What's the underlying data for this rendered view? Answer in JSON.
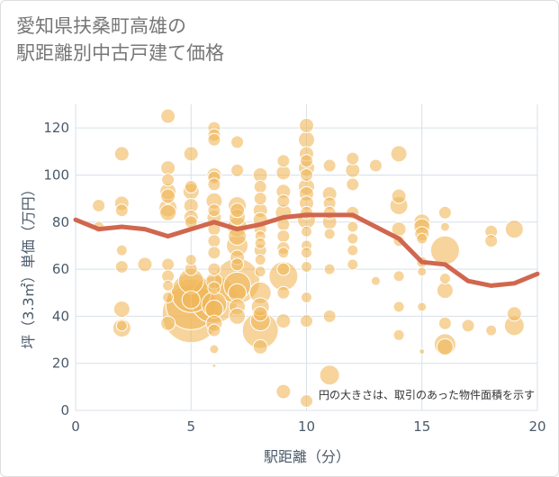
{
  "title_lines": [
    "愛知県扶桑町高雄の",
    "駅距離別中古戸建て価格"
  ],
  "chart_data": {
    "type": "scatter",
    "title": "愛知県扶桑町高雄の駅距離別中古戸建て価格",
    "xlabel": "駅距離（分）",
    "ylabel": "坪（3.3㎡）単価（万円）",
    "xlim": [
      0,
      20
    ],
    "ylim": [
      0,
      130
    ],
    "xticks": [
      0,
      5,
      10,
      15,
      20
    ],
    "yticks": [
      0,
      20,
      40,
      60,
      80,
      100,
      120
    ],
    "grid": true,
    "note": "円の大きさは、取引のあった物件面積を示す",
    "colors": {
      "bubble": "#f0b85a",
      "line": "#d0674e",
      "grid": "#d8e0e8"
    },
    "series": [
      {
        "kind": "bubbles",
        "points": [
          [
            1,
            87,
            7
          ],
          [
            1,
            78,
            6
          ],
          [
            2,
            109,
            8
          ],
          [
            2,
            88,
            8
          ],
          [
            2,
            85,
            7
          ],
          [
            2,
            68,
            6
          ],
          [
            2,
            61,
            7
          ],
          [
            2,
            43,
            9
          ],
          [
            2,
            36,
            6
          ],
          [
            2,
            35,
            10
          ],
          [
            3,
            62,
            8
          ],
          [
            4,
            125,
            8
          ],
          [
            4,
            103,
            8
          ],
          [
            4,
            98,
            7
          ],
          [
            4,
            93,
            9
          ],
          [
            4,
            91,
            8
          ],
          [
            4,
            86,
            10
          ],
          [
            4,
            84,
            9
          ],
          [
            4,
            62,
            7
          ],
          [
            4,
            57,
            7
          ],
          [
            4,
            53,
            6
          ],
          [
            4,
            48,
            6
          ],
          [
            4,
            37,
            8
          ],
          [
            5,
            109,
            8
          ],
          [
            5,
            95,
            7
          ],
          [
            5,
            93,
            9
          ],
          [
            5,
            87,
            8
          ],
          [
            5,
            82,
            8
          ],
          [
            5,
            80,
            7
          ],
          [
            5,
            64,
            6
          ],
          [
            5,
            60,
            7
          ],
          [
            5,
            55,
            14
          ],
          [
            5,
            50,
            22
          ],
          [
            5,
            47,
            10
          ],
          [
            5,
            45,
            28
          ],
          [
            5,
            41,
            32
          ],
          [
            6,
            120,
            7
          ],
          [
            6,
            117,
            7
          ],
          [
            6,
            115,
            7
          ],
          [
            6,
            100,
            8
          ],
          [
            6,
            99,
            7
          ],
          [
            6,
            96,
            7
          ],
          [
            6,
            89,
            9
          ],
          [
            6,
            85,
            7
          ],
          [
            6,
            82,
            8
          ],
          [
            6,
            77,
            7
          ],
          [
            6,
            72,
            7
          ],
          [
            6,
            67,
            7
          ],
          [
            6,
            60,
            7
          ],
          [
            6,
            55,
            9
          ],
          [
            6,
            52,
            7
          ],
          [
            6,
            47,
            26
          ],
          [
            6,
            45,
            14
          ],
          [
            6,
            43,
            10
          ],
          [
            6,
            37,
            9
          ],
          [
            6,
            34,
            7
          ],
          [
            6,
            26,
            5
          ],
          [
            6,
            19,
            2
          ],
          [
            7,
            114,
            7
          ],
          [
            7,
            102,
            7
          ],
          [
            7,
            87,
            10
          ],
          [
            7,
            85,
            8
          ],
          [
            7,
            82,
            9
          ],
          [
            7,
            78,
            11
          ],
          [
            7,
            74,
            10
          ],
          [
            7,
            70,
            12
          ],
          [
            7,
            65,
            8
          ],
          [
            7,
            62,
            7
          ],
          [
            7,
            55,
            25
          ],
          [
            7,
            53,
            15
          ],
          [
            7,
            50,
            10
          ],
          [
            7,
            44,
            9
          ],
          [
            7,
            40,
            9
          ],
          [
            8,
            100,
            8
          ],
          [
            8,
            95,
            7
          ],
          [
            8,
            90,
            7
          ],
          [
            8,
            85,
            8
          ],
          [
            8,
            81,
            8
          ],
          [
            8,
            77,
            7
          ],
          [
            8,
            74,
            6
          ],
          [
            8,
            71,
            6
          ],
          [
            8,
            68,
            7
          ],
          [
            8,
            64,
            6
          ],
          [
            8,
            59,
            6
          ],
          [
            8,
            50,
            12
          ],
          [
            8,
            44,
            10
          ],
          [
            8,
            41,
            8
          ],
          [
            8,
            38,
            11
          ],
          [
            8,
            34,
            20
          ],
          [
            8,
            27,
            8
          ],
          [
            9,
            106,
            7
          ],
          [
            9,
            101,
            8
          ],
          [
            9,
            93,
            8
          ],
          [
            9,
            89,
            7
          ],
          [
            9,
            84,
            9
          ],
          [
            9,
            79,
            7
          ],
          [
            9,
            74,
            7
          ],
          [
            9,
            69,
            7
          ],
          [
            9,
            67,
            6
          ],
          [
            9,
            60,
            7
          ],
          [
            9,
            57,
            16
          ],
          [
            9,
            50,
            7
          ],
          [
            9,
            38,
            8
          ],
          [
            9,
            8,
            8
          ],
          [
            10,
            121,
            8
          ],
          [
            10,
            115,
            9
          ],
          [
            10,
            109,
            8
          ],
          [
            10,
            106,
            7
          ],
          [
            10,
            103,
            9
          ],
          [
            10,
            100,
            7
          ],
          [
            10,
            95,
            9
          ],
          [
            10,
            92,
            8
          ],
          [
            10,
            88,
            8
          ],
          [
            10,
            84,
            7
          ],
          [
            10,
            81,
            10
          ],
          [
            10,
            76,
            6
          ],
          [
            10,
            70,
            6
          ],
          [
            10,
            67,
            6
          ],
          [
            10,
            61,
            6
          ],
          [
            10,
            48,
            6
          ],
          [
            10,
            38,
            7
          ],
          [
            10,
            4,
            7
          ],
          [
            11,
            104,
            7
          ],
          [
            11,
            92,
            8
          ],
          [
            11,
            88,
            7
          ],
          [
            11,
            84,
            7
          ],
          [
            11,
            80,
            8
          ],
          [
            11,
            75,
            6
          ],
          [
            11,
            60,
            6
          ],
          [
            11,
            40,
            7
          ],
          [
            11,
            15,
            11
          ],
          [
            12,
            107,
            7
          ],
          [
            12,
            102,
            8
          ],
          [
            12,
            96,
            7
          ],
          [
            12,
            84,
            7
          ],
          [
            12,
            78,
            6
          ],
          [
            12,
            73,
            6
          ],
          [
            12,
            68,
            6
          ],
          [
            12,
            62,
            6
          ],
          [
            13,
            104,
            7
          ],
          [
            13,
            55,
            5
          ],
          [
            14,
            109,
            9
          ],
          [
            14,
            91,
            8
          ],
          [
            14,
            87,
            10
          ],
          [
            14,
            77,
            8
          ],
          [
            14,
            72,
            6
          ],
          [
            14,
            57,
            6
          ],
          [
            14,
            44,
            6
          ],
          [
            14,
            32,
            6
          ],
          [
            15,
            80,
            9
          ],
          [
            15,
            78,
            9
          ],
          [
            15,
            75,
            8
          ],
          [
            15,
            73,
            6
          ],
          [
            15,
            63,
            6
          ],
          [
            15,
            59,
            5
          ],
          [
            15,
            44,
            5
          ],
          [
            15,
            25,
            3
          ],
          [
            16,
            84,
            7
          ],
          [
            16,
            78,
            5
          ],
          [
            16,
            68,
            16
          ],
          [
            16,
            56,
            6
          ],
          [
            16,
            51,
            9
          ],
          [
            16,
            37,
            7
          ],
          [
            16,
            28,
            12
          ],
          [
            16,
            27,
            9
          ],
          [
            17,
            36,
            7
          ],
          [
            18,
            76,
            7
          ],
          [
            18,
            72,
            7
          ],
          [
            18,
            34,
            6
          ],
          [
            19,
            77,
            10
          ],
          [
            19,
            41,
            8
          ],
          [
            19,
            36,
            11
          ]
        ]
      },
      {
        "kind": "line",
        "name": "",
        "x": [
          0,
          1,
          2,
          3,
          4,
          5,
          6,
          7,
          8,
          9,
          10,
          11,
          12,
          13,
          14,
          15,
          16,
          17,
          18,
          19,
          20
        ],
        "y": [
          81,
          77,
          78,
          77,
          74,
          77,
          80,
          77,
          79,
          82,
          83,
          83,
          83,
          78,
          73,
          63,
          62,
          55,
          53,
          54,
          58
        ]
      }
    ]
  }
}
